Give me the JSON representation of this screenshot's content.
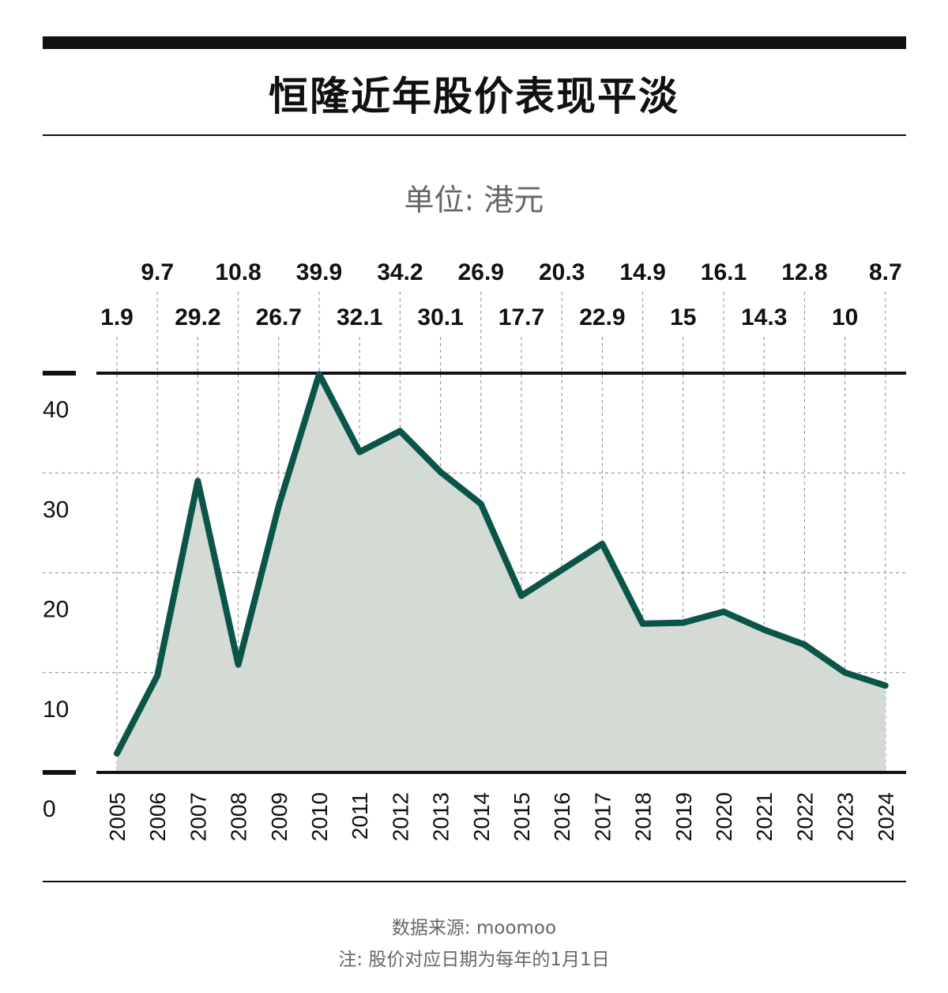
{
  "title": "恒隆近年股价表现平淡",
  "unit_label": "单位: 港元",
  "footer": {
    "source": "数据来源: moomoo",
    "note": "注: 股价对应日期为每年的1月1日"
  },
  "colors": {
    "line": "#0b5548",
    "area": "#d4dad4",
    "axis": "#111111",
    "grid": "#888888",
    "muted_text": "#666666"
  },
  "chart_data": {
    "type": "area",
    "title": "恒隆近年股价表现平淡",
    "x": [
      "2005",
      "2006",
      "2007",
      "2008",
      "2009",
      "2010",
      "2011",
      "2012",
      "2013",
      "2014",
      "2015",
      "2016",
      "2017",
      "2018",
      "2019",
      "2020",
      "2021",
      "2022",
      "2023",
      "2024"
    ],
    "series": [
      {
        "values": [
          1.9,
          9.7,
          29.2,
          10.8,
          26.7,
          39.9,
          32.1,
          34.2,
          30.1,
          26.9,
          17.7,
          20.3,
          22.9,
          14.9,
          15,
          16.1,
          14.3,
          12.8,
          10,
          8.7
        ]
      }
    ],
    "data_labels": [
      "1.9",
      "9.7",
      "29.2",
      "10.8",
      "26.7",
      "39.9",
      "32.1",
      "34.2",
      "30.1",
      "26.9",
      "17.7",
      "20.3",
      "22.9",
      "14.9",
      "15",
      "16.1",
      "14.3",
      "12.8",
      "10",
      "8.7"
    ],
    "y_ticks": [
      0,
      10,
      20,
      30,
      40
    ],
    "y_tick_labels": [
      "0",
      "10",
      "20",
      "30",
      "40"
    ],
    "ylim": [
      0,
      40
    ],
    "grid": true,
    "legend": "none"
  }
}
